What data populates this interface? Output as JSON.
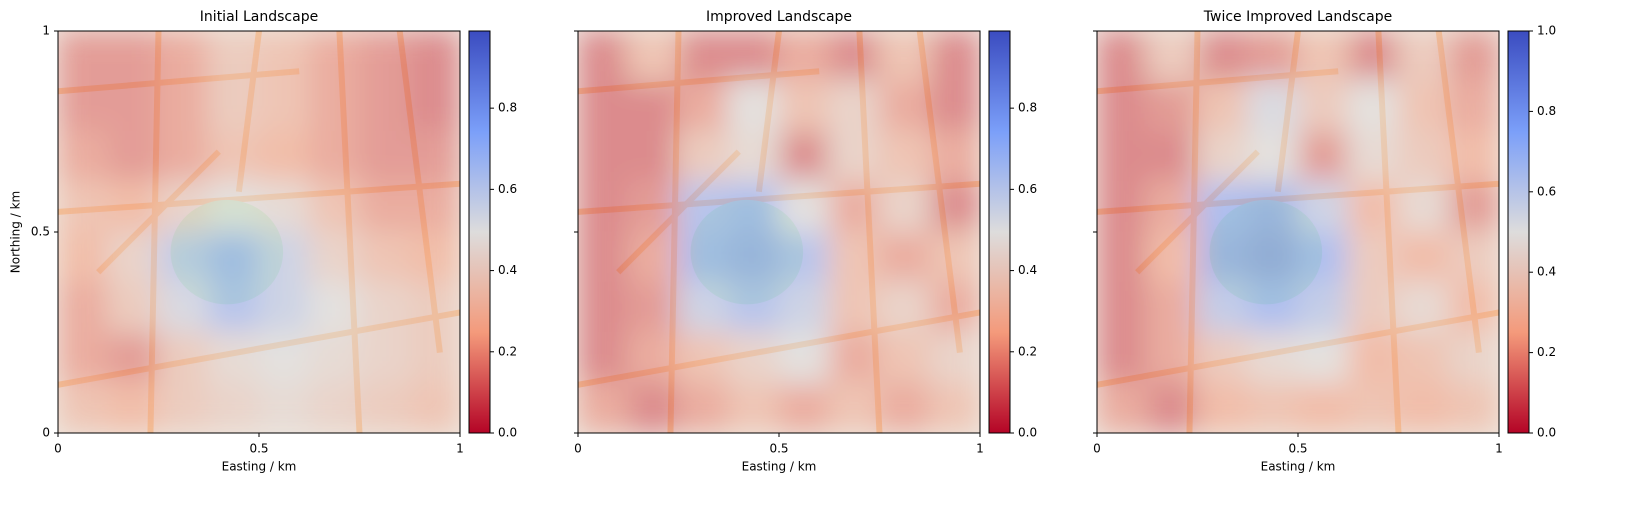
{
  "chart_data": [
    {
      "type": "heatmap",
      "title": "Initial Landscape",
      "xlabel": "Easting / km",
      "ylabel": "Northing / km",
      "xlim": [
        0,
        1
      ],
      "ylim": [
        0,
        1
      ],
      "xticks": [
        0,
        0.5,
        1
      ],
      "yticks": [
        0,
        0.5,
        1
      ],
      "show_yticklabels": true,
      "colormap": "coolwarm_r",
      "alpha": 0.55,
      "clim": [
        0,
        0.99
      ],
      "colorbar_ticks": [
        {
          "value": 0,
          "label": "0.0"
        },
        {
          "value": 0.2,
          "label": "0.2"
        },
        {
          "value": 0.4,
          "label": "0.4"
        },
        {
          "value": 0.6,
          "label": "0.6"
        },
        {
          "value": 0.8,
          "label": "0.8"
        }
      ],
      "values": [
        [
          0.15,
          0.15,
          0.2,
          0.35,
          0.3,
          0.2,
          0.15,
          0.1
        ],
        [
          0.15,
          0.15,
          0.2,
          0.35,
          0.3,
          0.2,
          0.15,
          0.1
        ],
        [
          0.2,
          0.15,
          0.2,
          0.3,
          0.25,
          0.2,
          0.15,
          0.15
        ],
        [
          0.3,
          0.25,
          0.4,
          0.5,
          0.45,
          0.3,
          0.2,
          0.2
        ],
        [
          0.25,
          0.4,
          0.65,
          0.75,
          0.6,
          0.4,
          0.3,
          0.25
        ],
        [
          0.2,
          0.35,
          0.55,
          0.7,
          0.6,
          0.5,
          0.4,
          0.35
        ],
        [
          0.2,
          0.15,
          0.35,
          0.45,
          0.5,
          0.45,
          0.4,
          0.35
        ],
        [
          0.3,
          0.25,
          0.35,
          0.4,
          0.45,
          0.4,
          0.35,
          0.3
        ]
      ]
    },
    {
      "type": "heatmap",
      "title": "Improved Landscape",
      "xlabel": "Easting / km",
      "xlim": [
        0,
        1
      ],
      "ylim": [
        0,
        1
      ],
      "xticks": [
        0,
        0.5,
        1
      ],
      "yticks": [
        0,
        0.5,
        1
      ],
      "show_yticklabels": false,
      "colormap": "coolwarm_r",
      "alpha": 0.55,
      "clim": [
        0,
        0.99
      ],
      "colorbar_ticks": [
        {
          "value": 0,
          "label": "0.0"
        },
        {
          "value": 0.2,
          "label": "0.2"
        },
        {
          "value": 0.4,
          "label": "0.4"
        },
        {
          "value": 0.6,
          "label": "0.6"
        },
        {
          "value": 0.8,
          "label": "0.8"
        }
      ],
      "values": [
        [
          0.1,
          0.3,
          0.1,
          0.1,
          0.2,
          0.1,
          0.3,
          0.1
        ],
        [
          0.1,
          0.1,
          0.2,
          0.5,
          0.3,
          0.4,
          0.2,
          0.1
        ],
        [
          0.1,
          0.1,
          0.35,
          0.45,
          0.1,
          0.4,
          0.3,
          0.2
        ],
        [
          0.1,
          0.15,
          0.7,
          0.75,
          0.5,
          0.2,
          0.4,
          0.1
        ],
        [
          0.1,
          0.2,
          0.75,
          0.8,
          0.7,
          0.3,
          0.2,
          0.3
        ],
        [
          0.1,
          0.15,
          0.6,
          0.7,
          0.6,
          0.3,
          0.4,
          0.2
        ],
        [
          0.1,
          0.2,
          0.3,
          0.4,
          0.5,
          0.2,
          0.3,
          0.4
        ],
        [
          0.2,
          0.1,
          0.2,
          0.3,
          0.2,
          0.3,
          0.2,
          0.3
        ]
      ]
    },
    {
      "type": "heatmap",
      "title": "Twice Improved Landscape",
      "xlabel": "Easting / km",
      "xlim": [
        0,
        1
      ],
      "ylim": [
        0,
        1
      ],
      "xticks": [
        0,
        0.5,
        1
      ],
      "yticks": [
        0,
        0.5,
        1
      ],
      "show_yticklabels": false,
      "colormap": "coolwarm_r",
      "alpha": 0.55,
      "clim": [
        0,
        1
      ],
      "colorbar_ticks": [
        {
          "value": 0,
          "label": "0.0"
        },
        {
          "value": 0.2,
          "label": "0.2"
        },
        {
          "value": 0.4,
          "label": "0.4"
        },
        {
          "value": 0.6,
          "label": "0.6"
        },
        {
          "value": 0.8,
          "label": "0.8"
        },
        {
          "value": 1,
          "label": "1.0"
        }
      ],
      "values": [
        [
          0.1,
          0.35,
          0.1,
          0.15,
          0.3,
          0.1,
          0.35,
          0.15
        ],
        [
          0.1,
          0.15,
          0.3,
          0.55,
          0.35,
          0.5,
          0.3,
          0.2
        ],
        [
          0.1,
          0.1,
          0.4,
          0.5,
          0.15,
          0.45,
          0.35,
          0.25
        ],
        [
          0.1,
          0.2,
          0.75,
          0.8,
          0.6,
          0.25,
          0.45,
          0.15
        ],
        [
          0.1,
          0.25,
          0.8,
          0.85,
          0.75,
          0.35,
          0.25,
          0.35
        ],
        [
          0.1,
          0.2,
          0.65,
          0.75,
          0.65,
          0.35,
          0.45,
          0.25
        ],
        [
          0.1,
          0.2,
          0.35,
          0.45,
          0.5,
          0.25,
          0.3,
          0.4
        ],
        [
          0.2,
          0.1,
          0.25,
          0.3,
          0.25,
          0.3,
          0.25,
          0.3
        ]
      ]
    }
  ]
}
